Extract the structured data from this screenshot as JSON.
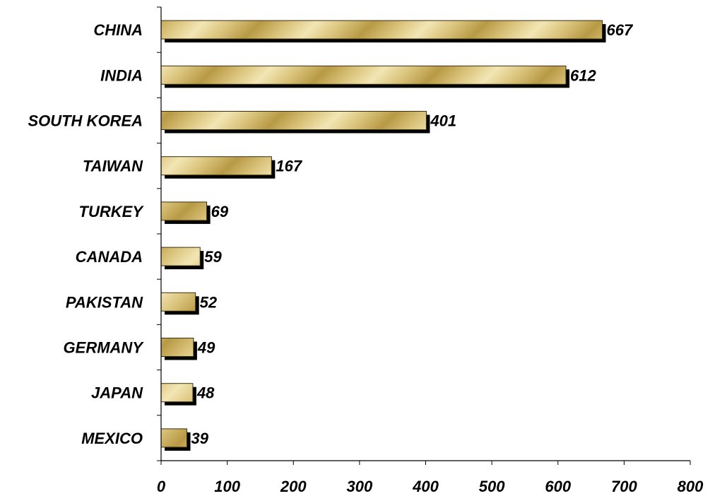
{
  "chart_data": {
    "type": "bar",
    "orientation": "horizontal",
    "categories": [
      "CHINA",
      "INDIA",
      "SOUTH KOREA",
      "TAIWAN",
      "TURKEY",
      "CANADA",
      "PAKISTAN",
      "GERMANY",
      "JAPAN",
      "MEXICO"
    ],
    "values": [
      667,
      612,
      401,
      167,
      69,
      59,
      52,
      49,
      48,
      39
    ],
    "data_labels": [
      "667",
      "612",
      "401",
      "167",
      "69",
      "59",
      "52",
      "49",
      "48",
      "39"
    ],
    "x_ticks": [
      "0",
      "100",
      "200",
      "300",
      "400",
      "500",
      "600",
      "700",
      "800"
    ],
    "xlim": [
      0,
      800
    ],
    "title": "",
    "xlabel": "",
    "ylabel": "",
    "grid": false,
    "legend": "none",
    "colors": {
      "bar_light": "#f3e6b4",
      "bar_mid": "#d9c27a",
      "bar_dark": "#b89a45",
      "bar_border": "#3a2f10",
      "shadow": "#000000",
      "axis": "#000000"
    }
  }
}
